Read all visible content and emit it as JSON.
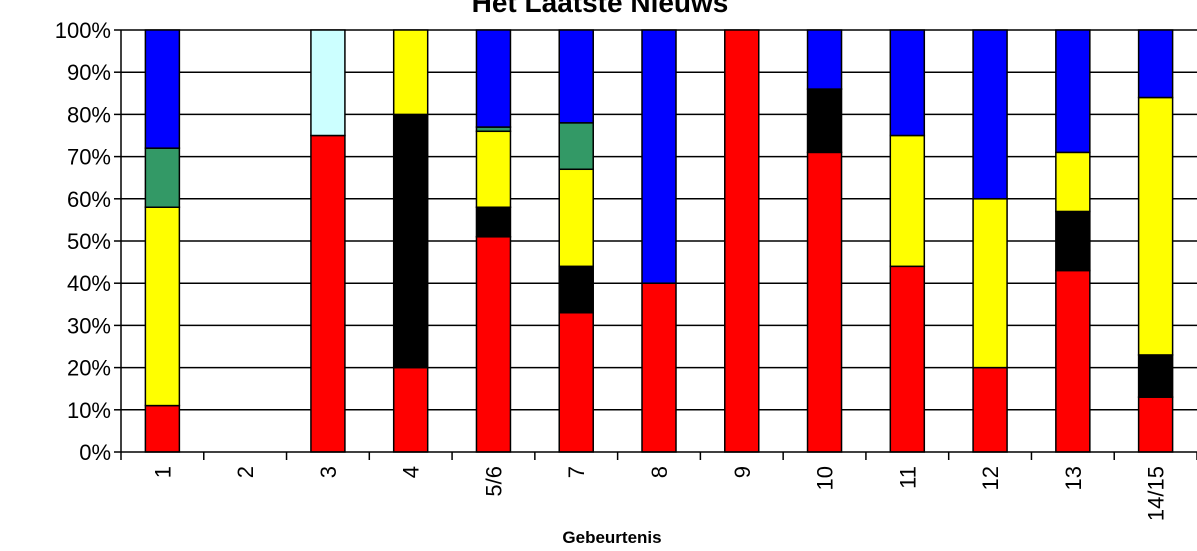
{
  "chart_data": {
    "type": "bar",
    "stacked": true,
    "normalized_percent": true,
    "title": "Het Laatste Nieuws",
    "xlabel": "Gebeurtenis",
    "ylabel": "",
    "ylim": [
      0,
      100
    ],
    "yticks": [
      "0%",
      "10%",
      "20%",
      "30%",
      "40%",
      "50%",
      "60%",
      "70%",
      "80%",
      "90%",
      "100%"
    ],
    "grid": true,
    "legend": "none",
    "categories": [
      "1",
      "2",
      "3",
      "4",
      "5/6",
      "7",
      "8",
      "9",
      "10",
      "11",
      "12",
      "13",
      "14/15"
    ],
    "series": [
      {
        "color": "#ff0000",
        "values": [
          11,
          0,
          75,
          20,
          51,
          33,
          40,
          100,
          71,
          44,
          20,
          43,
          13
        ]
      },
      {
        "color": "#000000",
        "values": [
          0,
          0,
          0,
          60,
          7,
          11,
          0,
          0,
          15,
          0,
          0,
          14,
          10
        ]
      },
      {
        "color": "#ffff00",
        "values": [
          47,
          0,
          0,
          20,
          18,
          23,
          0,
          0,
          0,
          31,
          40,
          14,
          61
        ]
      },
      {
        "color": "#339966",
        "values": [
          14,
          0,
          0,
          0,
          1,
          11,
          0,
          0,
          0,
          0,
          0,
          0,
          0
        ]
      },
      {
        "color": "#ccffff",
        "values": [
          0,
          0,
          25,
          0,
          0,
          0,
          0,
          0,
          0,
          0,
          0,
          0,
          0
        ]
      },
      {
        "color": "#0000ff",
        "values": [
          28,
          0,
          0,
          0,
          23,
          22,
          60,
          0,
          14,
          25,
          40,
          29,
          16
        ]
      }
    ]
  }
}
